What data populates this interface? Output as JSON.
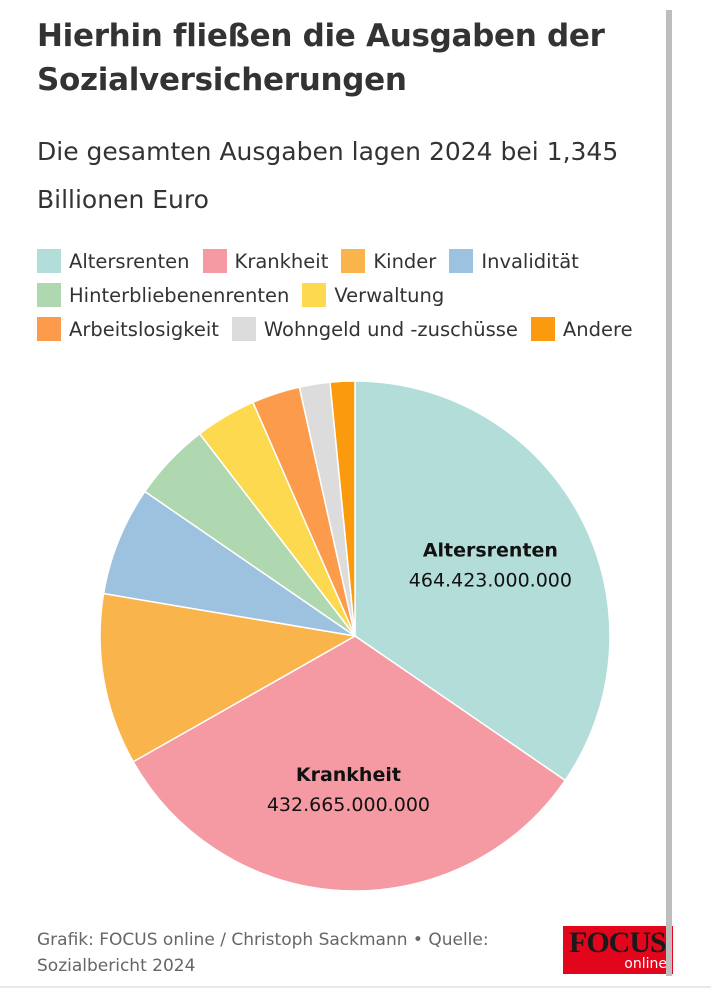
{
  "title": "Hierhin fließen die Ausgaben der Sozialversicherungen",
  "subtitle": "Die gesamten Ausgaben lagen 2024 bei 1,345 Billionen Euro",
  "footer": "Grafik: FOCUS online / Christoph Sackmann • Quelle: Sozialbericht 2024",
  "logo": {
    "text": "FOCUS",
    "sub": "online"
  },
  "chart_data": {
    "type": "pie",
    "title": "Hierhin fließen die Ausgaben der Sozialversicherungen",
    "subtitle": "Die gesamten Ausgaben lagen 2024 bei 1,345 Billionen Euro",
    "legend_position": "top",
    "start": "12 o'clock, clockwise",
    "slices": [
      {
        "name": "Altersrenten",
        "value": 464423000000,
        "label": "464.423.000.000",
        "color": "#b3ddd9",
        "show_label": true
      },
      {
        "name": "Krankheit",
        "value": 432665000000,
        "label": "432.665.000.000",
        "color": "#f59aa3",
        "show_label": true
      },
      {
        "name": "Kinder",
        "value": 146000000000,
        "color": "#f9b44b",
        "show_label": false
      },
      {
        "name": "Invalidität",
        "value": 93000000000,
        "color": "#9dc2e0",
        "show_label": false
      },
      {
        "name": "Hinterbliebenenrenten",
        "value": 67000000000,
        "color": "#b0d8b0",
        "show_label": false
      },
      {
        "name": "Verwaltung",
        "value": 52000000000,
        "color": "#fcd94e",
        "show_label": false
      },
      {
        "name": "Arbeitslosigkeit",
        "value": 41000000000,
        "color": "#fb9b4b",
        "show_label": false
      },
      {
        "name": "Wohngeld und -zuschüsse",
        "value": 26000000000,
        "color": "#dcdcdc",
        "show_label": false
      },
      {
        "name": "Andere",
        "value": 21000000000,
        "color": "#fb9a0c",
        "show_label": false
      }
    ]
  }
}
